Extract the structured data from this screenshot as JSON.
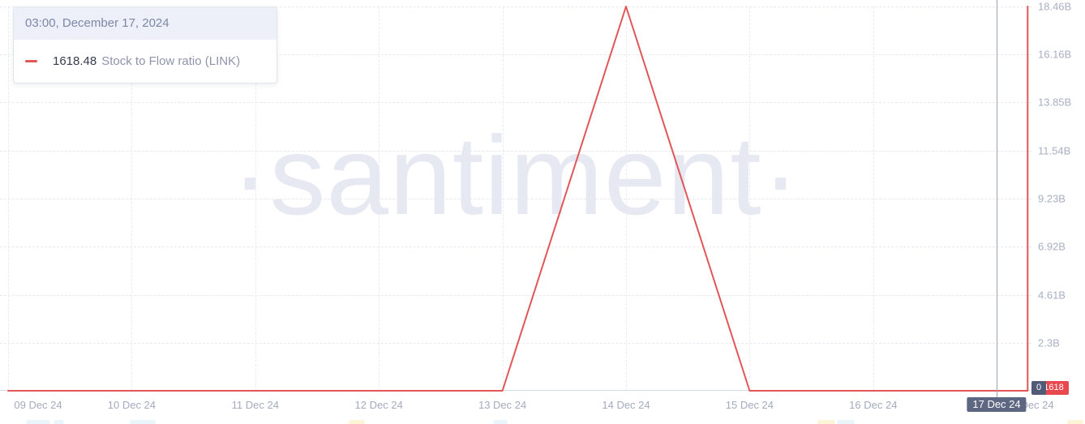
{
  "tooltip": {
    "datetime": "03:00, December 17, 2024",
    "value": "1618.48",
    "series_label": "Stock to Flow ratio (LINK)"
  },
  "watermark": "·santiment·",
  "badges": {
    "x_axis_date": "17 Dec 24",
    "y_axis_crosshair": "0",
    "y_axis_value": "1618"
  },
  "colors": {
    "series_red": "#e15656",
    "badge_navy": "#5d6782",
    "badge_red": "#e8494e",
    "grid": "#e7e9f0",
    "axis_text": "#a9afc3",
    "watermark": "#e7e9f2"
  },
  "chart_data": {
    "type": "line",
    "title": "Stock to Flow ratio (LINK)",
    "grid": "dashed",
    "y_axis_side": "right",
    "legend_position": "tooltip top-left",
    "x_ticks": [
      "09 Dec 24",
      "10 Dec 24",
      "11 Dec 24",
      "12 Dec 24",
      "13 Dec 24",
      "14 Dec 24",
      "15 Dec 24",
      "16 Dec 24",
      "17 Dec 24"
    ],
    "y_ticks": [
      "2.3B",
      "4.61B",
      "6.92B",
      "9.23B",
      "11.54B",
      "13.85B",
      "16.16B",
      "18.46B"
    ],
    "y_tick_values": [
      2300000000,
      4610000000,
      6920000000,
      9230000000,
      11540000000,
      13850000000,
      16160000000,
      18460000000
    ],
    "y_max": 18460000000,
    "y_min": 0,
    "series": [
      {
        "name": "Stock to Flow ratio (LINK)",
        "color": "#e15656",
        "points_day_value": [
          [
            0,
            0
          ],
          [
            4,
            0
          ],
          [
            5,
            18460000000
          ],
          [
            6,
            0
          ],
          [
            8.25,
            0
          ],
          [
            8.25,
            18460000000
          ]
        ],
        "note_daily_values": {
          "09 Dec 24": 0,
          "10 Dec 24": 0,
          "11 Dec 24": 0,
          "12 Dec 24": 0,
          "13 Dec 24": 0,
          "14 Dec 24": 18460000000,
          "15 Dec 24": 0,
          "16 Dec 24": 0,
          "17 Dec 24 03:00": 1618.48
        }
      }
    ],
    "crosshair_day_index": 8,
    "hover": {
      "time": "03:00, December 17, 2024",
      "value": 1618.48
    }
  }
}
